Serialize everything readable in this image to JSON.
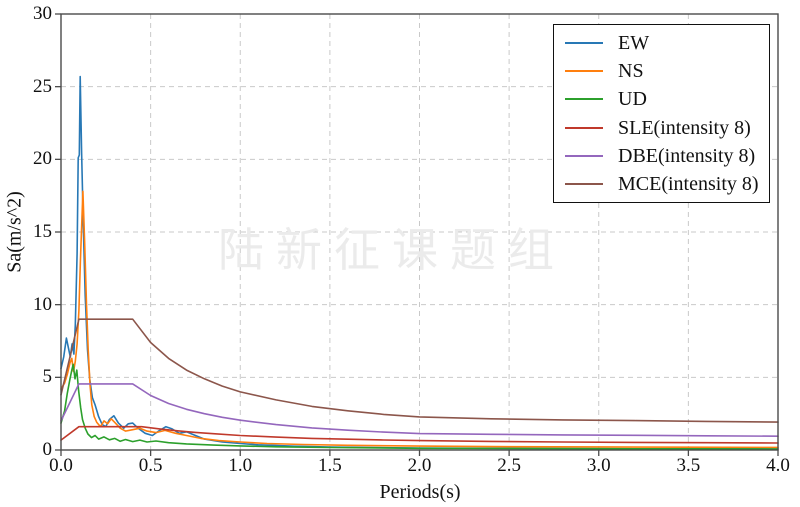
{
  "figure": {
    "watermark": "陆新征课题组"
  },
  "chart_data": {
    "type": "line",
    "title": "",
    "xlabel": "Periods(s)",
    "ylabel": "Sa(m/s^2)",
    "xlim": [
      0,
      4
    ],
    "ylim": [
      0,
      30
    ],
    "xticks": [
      0,
      0.5,
      1,
      1.5,
      2,
      2.5,
      3,
      3.5,
      4
    ],
    "xtick_labels": [
      "0.0",
      "0.5",
      "1.0",
      "1.5",
      "2.0",
      "2.5",
      "3.0",
      "3.5",
      "4.0"
    ],
    "yticks": [
      0,
      5,
      10,
      15,
      20,
      25,
      30
    ],
    "ytick_labels": [
      "0",
      "5",
      "10",
      "15",
      "20",
      "25",
      "30"
    ],
    "grid": true,
    "grid_style": "dashed",
    "grid_color": "#c9c9c9",
    "legend_position": "upper right",
    "series": [
      {
        "name": "EW",
        "color": "#2878b5",
        "points": [
          [
            0,
            5.6
          ],
          [
            0.015,
            6.4
          ],
          [
            0.03,
            7.7
          ],
          [
            0.042,
            7.0
          ],
          [
            0.052,
            6.4
          ],
          [
            0.062,
            7.3
          ],
          [
            0.072,
            6.6
          ],
          [
            0.08,
            8.6
          ],
          [
            0.09,
            13.5
          ],
          [
            0.096,
            20.1
          ],
          [
            0.102,
            20.3
          ],
          [
            0.107,
            25.7
          ],
          [
            0.115,
            20.5
          ],
          [
            0.125,
            15.2
          ],
          [
            0.135,
            10.6
          ],
          [
            0.148,
            6.9
          ],
          [
            0.16,
            4.9
          ],
          [
            0.175,
            3.6
          ],
          [
            0.19,
            3.1
          ],
          [
            0.21,
            2.3
          ],
          [
            0.23,
            1.75
          ],
          [
            0.25,
            1.6
          ],
          [
            0.27,
            2.1
          ],
          [
            0.295,
            2.35
          ],
          [
            0.32,
            1.85
          ],
          [
            0.35,
            1.5
          ],
          [
            0.375,
            1.8
          ],
          [
            0.4,
            1.85
          ],
          [
            0.43,
            1.5
          ],
          [
            0.47,
            1.15
          ],
          [
            0.51,
            1.0
          ],
          [
            0.55,
            1.35
          ],
          [
            0.585,
            1.6
          ],
          [
            0.62,
            1.45
          ],
          [
            0.66,
            1.15
          ],
          [
            0.7,
            1.25
          ],
          [
            0.74,
            1.05
          ],
          [
            0.8,
            0.75
          ],
          [
            0.9,
            0.55
          ],
          [
            1.0,
            0.45
          ],
          [
            1.1,
            0.36
          ],
          [
            1.3,
            0.26
          ],
          [
            1.5,
            0.2
          ],
          [
            2.0,
            0.14
          ],
          [
            2.5,
            0.11
          ],
          [
            3.0,
            0.09
          ],
          [
            3.5,
            0.08
          ],
          [
            4.0,
            0.07
          ]
        ]
      },
      {
        "name": "NS",
        "color": "#ff7f0e",
        "points": [
          [
            0,
            4.2
          ],
          [
            0.02,
            4.6
          ],
          [
            0.035,
            5.2
          ],
          [
            0.05,
            6.0
          ],
          [
            0.06,
            6.3
          ],
          [
            0.07,
            5.4
          ],
          [
            0.08,
            6.1
          ],
          [
            0.09,
            7.3
          ],
          [
            0.1,
            9.6
          ],
          [
            0.108,
            13.0
          ],
          [
            0.115,
            15.3
          ],
          [
            0.122,
            17.8
          ],
          [
            0.132,
            14.2
          ],
          [
            0.142,
            10.0
          ],
          [
            0.152,
            6.9
          ],
          [
            0.162,
            4.5
          ],
          [
            0.172,
            3.1
          ],
          [
            0.185,
            2.3
          ],
          [
            0.2,
            1.9
          ],
          [
            0.22,
            1.6
          ],
          [
            0.24,
            2.0
          ],
          [
            0.26,
            1.8
          ],
          [
            0.28,
            2.15
          ],
          [
            0.3,
            1.9
          ],
          [
            0.33,
            1.5
          ],
          [
            0.36,
            1.3
          ],
          [
            0.4,
            1.4
          ],
          [
            0.44,
            1.5
          ],
          [
            0.48,
            1.3
          ],
          [
            0.53,
            1.2
          ],
          [
            0.58,
            1.35
          ],
          [
            0.64,
            1.15
          ],
          [
            0.7,
            1.0
          ],
          [
            0.78,
            0.8
          ],
          [
            0.88,
            0.65
          ],
          [
            1.0,
            0.55
          ],
          [
            1.15,
            0.45
          ],
          [
            1.35,
            0.38
          ],
          [
            1.6,
            0.32
          ],
          [
            2.0,
            0.27
          ],
          [
            2.5,
            0.23
          ],
          [
            3.0,
            0.21
          ],
          [
            3.5,
            0.19
          ],
          [
            4.0,
            0.18
          ]
        ]
      },
      {
        "name": "UD",
        "color": "#2ca02c",
        "points": [
          [
            0,
            1.85
          ],
          [
            0.02,
            2.7
          ],
          [
            0.035,
            3.9
          ],
          [
            0.05,
            4.9
          ],
          [
            0.06,
            5.5
          ],
          [
            0.068,
            5.9
          ],
          [
            0.078,
            4.9
          ],
          [
            0.088,
            5.5
          ],
          [
            0.098,
            4.1
          ],
          [
            0.11,
            2.9
          ],
          [
            0.12,
            2.1
          ],
          [
            0.135,
            1.5
          ],
          [
            0.15,
            1.1
          ],
          [
            0.17,
            0.85
          ],
          [
            0.19,
            1.0
          ],
          [
            0.21,
            0.75
          ],
          [
            0.24,
            0.9
          ],
          [
            0.27,
            0.7
          ],
          [
            0.3,
            0.8
          ],
          [
            0.33,
            0.6
          ],
          [
            0.36,
            0.72
          ],
          [
            0.4,
            0.58
          ],
          [
            0.44,
            0.68
          ],
          [
            0.48,
            0.55
          ],
          [
            0.53,
            0.62
          ],
          [
            0.6,
            0.5
          ],
          [
            0.7,
            0.42
          ],
          [
            0.85,
            0.34
          ],
          [
            1.0,
            0.28
          ],
          [
            1.2,
            0.22
          ],
          [
            1.5,
            0.17
          ],
          [
            2.0,
            0.12
          ],
          [
            2.5,
            0.1
          ],
          [
            3.0,
            0.09
          ],
          [
            3.5,
            0.08
          ],
          [
            4.0,
            0.07
          ]
        ]
      },
      {
        "name": "SLE(intensity 8)",
        "color": "#c0392b",
        "points": [
          [
            0,
            0.68
          ],
          [
            0.1,
            1.6
          ],
          [
            0.45,
            1.6
          ],
          [
            0.55,
            1.45
          ],
          [
            0.65,
            1.32
          ],
          [
            0.75,
            1.21
          ],
          [
            0.85,
            1.12
          ],
          [
            1.0,
            1.0
          ],
          [
            1.2,
            0.89
          ],
          [
            1.4,
            0.8
          ],
          [
            1.6,
            0.74
          ],
          [
            1.8,
            0.69
          ],
          [
            2.0,
            0.65
          ],
          [
            2.4,
            0.59
          ],
          [
            2.8,
            0.55
          ],
          [
            3.2,
            0.52
          ],
          [
            3.6,
            0.5
          ],
          [
            4.0,
            0.48
          ]
        ]
      },
      {
        "name": "DBE(intensity 8)",
        "color": "#9467bd",
        "points": [
          [
            0,
            2.0
          ],
          [
            0.1,
            4.55
          ],
          [
            0.4,
            4.55
          ],
          [
            0.5,
            3.75
          ],
          [
            0.6,
            3.2
          ],
          [
            0.7,
            2.8
          ],
          [
            0.8,
            2.5
          ],
          [
            0.9,
            2.25
          ],
          [
            1.0,
            2.05
          ],
          [
            1.2,
            1.75
          ],
          [
            1.4,
            1.52
          ],
          [
            1.6,
            1.36
          ],
          [
            1.8,
            1.23
          ],
          [
            2.0,
            1.13
          ],
          [
            2.4,
            1.08
          ],
          [
            2.8,
            1.04
          ],
          [
            3.2,
            1.01
          ],
          [
            3.6,
            0.98
          ],
          [
            4.0,
            0.95
          ]
        ]
      },
      {
        "name": "MCE(intensity 8)",
        "color": "#8c564b",
        "points": [
          [
            0,
            3.8
          ],
          [
            0.1,
            9.0
          ],
          [
            0.4,
            9.0
          ],
          [
            0.5,
            7.4
          ],
          [
            0.6,
            6.3
          ],
          [
            0.7,
            5.5
          ],
          [
            0.8,
            4.9
          ],
          [
            0.9,
            4.4
          ],
          [
            1.0,
            4.0
          ],
          [
            1.2,
            3.45
          ],
          [
            1.4,
            3.0
          ],
          [
            1.6,
            2.7
          ],
          [
            1.8,
            2.45
          ],
          [
            2.0,
            2.28
          ],
          [
            2.4,
            2.15
          ],
          [
            2.8,
            2.07
          ],
          [
            3.2,
            2.02
          ],
          [
            3.6,
            1.97
          ],
          [
            4.0,
            1.92
          ]
        ]
      }
    ]
  }
}
